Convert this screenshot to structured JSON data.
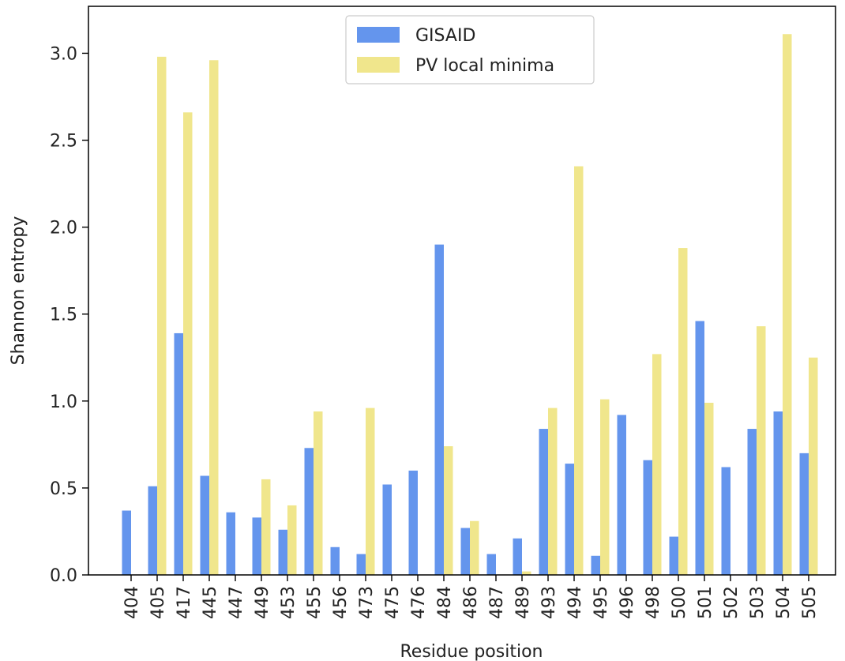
{
  "chart_data": {
    "type": "bar",
    "xlabel": "Residue position",
    "ylabel": "Shannon entropy",
    "ylim": [
      0,
      3.27
    ],
    "yticks": [
      "0.0",
      "0.5",
      "1.0",
      "1.5",
      "2.0",
      "2.5",
      "3.0"
    ],
    "categories": [
      "404",
      "405",
      "417",
      "445",
      "447",
      "449",
      "453",
      "455",
      "456",
      "473",
      "475",
      "476",
      "484",
      "486",
      "487",
      "489",
      "493",
      "494",
      "495",
      "496",
      "498",
      "500",
      "501",
      "502",
      "503",
      "504",
      "505"
    ],
    "series": [
      {
        "name": "GISAID",
        "color": "#6495ED",
        "values": [
          0.37,
          0.51,
          1.39,
          0.57,
          0.36,
          0.33,
          0.26,
          0.73,
          0.16,
          0.12,
          0.52,
          0.6,
          1.9,
          0.27,
          0.12,
          0.21,
          0.84,
          0.64,
          0.11,
          0.92,
          0.66,
          0.22,
          1.46,
          0.62,
          0.84,
          0.94,
          0.7
        ]
      },
      {
        "name": "PV local minima",
        "color": "#F0E68C",
        "values": [
          0.0,
          2.98,
          2.66,
          2.96,
          0.0,
          0.55,
          0.4,
          0.94,
          0.0,
          0.96,
          0.0,
          0.0,
          0.74,
          0.31,
          0.0,
          0.02,
          0.96,
          2.35,
          1.01,
          0.0,
          1.27,
          1.88,
          0.99,
          0.0,
          1.43,
          3.11,
          1.25
        ]
      }
    ],
    "grid": false,
    "legend": "top-center"
  }
}
